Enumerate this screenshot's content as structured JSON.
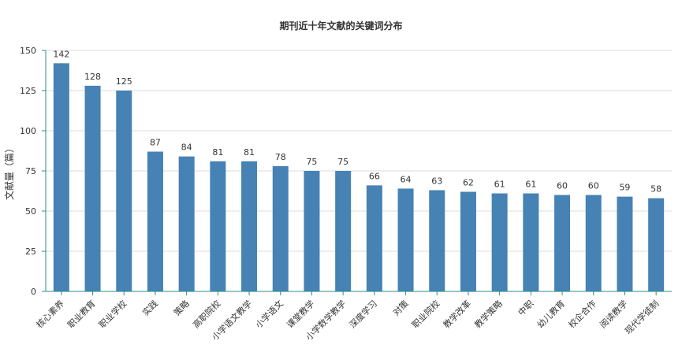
{
  "chart_data": {
    "type": "bar",
    "title": "期刊近十年文献的关键词分布",
    "xlabel": "",
    "ylabel": "文献量（篇）",
    "ylim": [
      0,
      150
    ],
    "yticks": [
      0,
      25,
      50,
      75,
      100,
      125,
      150
    ],
    "grid": true,
    "legend": "none",
    "categories": [
      "核心素养",
      "职业教育",
      "职业学校",
      "实践",
      "策略",
      "高职院校",
      "小学语文教学",
      "小学语文",
      "课堂教学",
      "小学数学教学",
      "深度学习",
      "对策",
      "职业院校",
      "教学改革",
      "教学策略",
      "中职",
      "幼儿教育",
      "校企合作",
      "阅读教学",
      "现代学徒制"
    ],
    "values": [
      142,
      128,
      125,
      87,
      84,
      81,
      81,
      78,
      75,
      75,
      66,
      64,
      63,
      62,
      61,
      61,
      60,
      60,
      59,
      58
    ],
    "colors": {
      "bar": "#4682b4",
      "axis": "#2e8b8b",
      "grid": "#dddddd",
      "text": "#333333"
    }
  }
}
